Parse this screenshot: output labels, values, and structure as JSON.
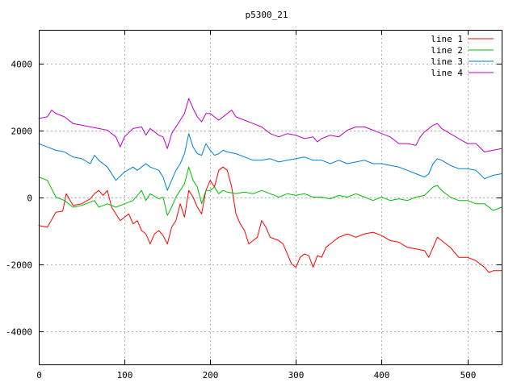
{
  "chart_data": {
    "type": "line",
    "title": "p5300_21",
    "xlabel": "",
    "ylabel": "",
    "xlim": [
      0,
      540
    ],
    "ylim": [
      -5000,
      5000
    ],
    "xticks": [
      0,
      100,
      200,
      300,
      400,
      500
    ],
    "yticks": [
      -4000,
      -2000,
      0,
      2000,
      4000
    ],
    "grid": true,
    "legend_position": "top-right",
    "series": [
      {
        "name": "line 1",
        "color": "#ff0000",
        "points": [
          [
            0,
            -850
          ],
          [
            10,
            -900
          ],
          [
            20,
            -450
          ],
          [
            28,
            -420
          ],
          [
            32,
            100
          ],
          [
            40,
            -250
          ],
          [
            50,
            -200
          ],
          [
            60,
            -50
          ],
          [
            65,
            100
          ],
          [
            70,
            200
          ],
          [
            75,
            50
          ],
          [
            80,
            200
          ],
          [
            85,
            -300
          ],
          [
            95,
            -700
          ],
          [
            105,
            -500
          ],
          [
            110,
            -800
          ],
          [
            115,
            -700
          ],
          [
            120,
            -1000
          ],
          [
            125,
            -1100
          ],
          [
            130,
            -1400
          ],
          [
            135,
            -1100
          ],
          [
            140,
            -1000
          ],
          [
            145,
            -1150
          ],
          [
            150,
            -1400
          ],
          [
            155,
            -900
          ],
          [
            160,
            -700
          ],
          [
            165,
            -200
          ],
          [
            170,
            -600
          ],
          [
            175,
            200
          ],
          [
            180,
            0
          ],
          [
            185,
            -300
          ],
          [
            190,
            -500
          ],
          [
            195,
            200
          ],
          [
            200,
            500
          ],
          [
            205,
            300
          ],
          [
            210,
            800
          ],
          [
            215,
            900
          ],
          [
            220,
            800
          ],
          [
            225,
            300
          ],
          [
            230,
            -500
          ],
          [
            235,
            -800
          ],
          [
            240,
            -1000
          ],
          [
            245,
            -1400
          ],
          [
            250,
            -1300
          ],
          [
            255,
            -1200
          ],
          [
            260,
            -700
          ],
          [
            265,
            -900
          ],
          [
            270,
            -1200
          ],
          [
            275,
            -1250
          ],
          [
            280,
            -1300
          ],
          [
            285,
            -1400
          ],
          [
            290,
            -1700
          ],
          [
            295,
            -2000
          ],
          [
            300,
            -2100
          ],
          [
            305,
            -1800
          ],
          [
            310,
            -1700
          ],
          [
            315,
            -1750
          ],
          [
            320,
            -2100
          ],
          [
            325,
            -1750
          ],
          [
            330,
            -1800
          ],
          [
            335,
            -1500
          ],
          [
            340,
            -1400
          ],
          [
            345,
            -1300
          ],
          [
            350,
            -1200
          ],
          [
            360,
            -1100
          ],
          [
            370,
            -1200
          ],
          [
            380,
            -1100
          ],
          [
            390,
            -1050
          ],
          [
            400,
            -1150
          ],
          [
            410,
            -1300
          ],
          [
            420,
            -1350
          ],
          [
            430,
            -1500
          ],
          [
            440,
            -1550
          ],
          [
            450,
            -1600
          ],
          [
            455,
            -1800
          ],
          [
            460,
            -1500
          ],
          [
            465,
            -1200
          ],
          [
            470,
            -1300
          ],
          [
            475,
            -1400
          ],
          [
            480,
            -1500
          ],
          [
            485,
            -1650
          ],
          [
            490,
            -1800
          ],
          [
            500,
            -1800
          ],
          [
            510,
            -1900
          ],
          [
            520,
            -2100
          ],
          [
            525,
            -2250
          ],
          [
            530,
            -2200
          ],
          [
            540,
            -2200
          ]
        ]
      },
      {
        "name": "line 2",
        "color": "#00c000",
        "points": [
          [
            0,
            600
          ],
          [
            10,
            500
          ],
          [
            20,
            0
          ],
          [
            30,
            -100
          ],
          [
            40,
            -300
          ],
          [
            50,
            -250
          ],
          [
            60,
            -150
          ],
          [
            65,
            -100
          ],
          [
            70,
            -300
          ],
          [
            80,
            -200
          ],
          [
            90,
            -300
          ],
          [
            100,
            -200
          ],
          [
            110,
            -100
          ],
          [
            120,
            200
          ],
          [
            125,
            -100
          ],
          [
            130,
            100
          ],
          [
            140,
            -50
          ],
          [
            145,
            0
          ],
          [
            150,
            -550
          ],
          [
            155,
            -300
          ],
          [
            160,
            0
          ],
          [
            165,
            200
          ],
          [
            170,
            400
          ],
          [
            175,
            900
          ],
          [
            180,
            500
          ],
          [
            185,
            300
          ],
          [
            190,
            -200
          ],
          [
            195,
            200
          ],
          [
            200,
            200
          ],
          [
            205,
            300
          ],
          [
            210,
            100
          ],
          [
            215,
            200
          ],
          [
            220,
            150
          ],
          [
            230,
            100
          ],
          [
            240,
            150
          ],
          [
            250,
            100
          ],
          [
            260,
            200
          ],
          [
            270,
            100
          ],
          [
            280,
            0
          ],
          [
            290,
            100
          ],
          [
            300,
            50
          ],
          [
            310,
            100
          ],
          [
            320,
            0
          ],
          [
            330,
            0
          ],
          [
            340,
            -50
          ],
          [
            350,
            50
          ],
          [
            360,
            0
          ],
          [
            370,
            100
          ],
          [
            380,
            0
          ],
          [
            390,
            -100
          ],
          [
            400,
            0
          ],
          [
            410,
            -100
          ],
          [
            420,
            -50
          ],
          [
            430,
            -100
          ],
          [
            440,
            0
          ],
          [
            450,
            50
          ],
          [
            460,
            300
          ],
          [
            465,
            350
          ],
          [
            470,
            200
          ],
          [
            480,
            0
          ],
          [
            490,
            -100
          ],
          [
            500,
            -100
          ],
          [
            510,
            -200
          ],
          [
            520,
            -200
          ],
          [
            530,
            -400
          ],
          [
            540,
            -300
          ]
        ]
      },
      {
        "name": "line 3",
        "color": "#0080d0",
        "points": [
          [
            0,
            1600
          ],
          [
            10,
            1500
          ],
          [
            20,
            1400
          ],
          [
            30,
            1350
          ],
          [
            40,
            1200
          ],
          [
            50,
            1150
          ],
          [
            60,
            1000
          ],
          [
            65,
            1250
          ],
          [
            70,
            1100
          ],
          [
            80,
            900
          ],
          [
            90,
            500
          ],
          [
            100,
            750
          ],
          [
            110,
            900
          ],
          [
            115,
            800
          ],
          [
            120,
            900
          ],
          [
            125,
            1000
          ],
          [
            130,
            900
          ],
          [
            140,
            800
          ],
          [
            145,
            600
          ],
          [
            150,
            200
          ],
          [
            155,
            500
          ],
          [
            160,
            800
          ],
          [
            165,
            1000
          ],
          [
            170,
            1300
          ],
          [
            175,
            1900
          ],
          [
            180,
            1500
          ],
          [
            185,
            1300
          ],
          [
            190,
            1250
          ],
          [
            195,
            1600
          ],
          [
            200,
            1400
          ],
          [
            205,
            1250
          ],
          [
            210,
            1300
          ],
          [
            215,
            1400
          ],
          [
            220,
            1350
          ],
          [
            230,
            1300
          ],
          [
            240,
            1200
          ],
          [
            250,
            1100
          ],
          [
            260,
            1100
          ],
          [
            270,
            1150
          ],
          [
            280,
            1050
          ],
          [
            290,
            1100
          ],
          [
            300,
            1150
          ],
          [
            310,
            1200
          ],
          [
            320,
            1100
          ],
          [
            330,
            1100
          ],
          [
            340,
            1000
          ],
          [
            350,
            1100
          ],
          [
            360,
            1000
          ],
          [
            370,
            1050
          ],
          [
            380,
            1100
          ],
          [
            390,
            1000
          ],
          [
            400,
            1000
          ],
          [
            410,
            950
          ],
          [
            420,
            900
          ],
          [
            430,
            800
          ],
          [
            440,
            700
          ],
          [
            450,
            600
          ],
          [
            455,
            700
          ],
          [
            460,
            1000
          ],
          [
            465,
            1150
          ],
          [
            470,
            1100
          ],
          [
            480,
            950
          ],
          [
            490,
            850
          ],
          [
            500,
            850
          ],
          [
            510,
            800
          ],
          [
            520,
            550
          ],
          [
            530,
            650
          ],
          [
            540,
            700
          ]
        ]
      },
      {
        "name": "line 4",
        "color": "#c000c0",
        "points": [
          [
            0,
            2350
          ],
          [
            10,
            2400
          ],
          [
            15,
            2600
          ],
          [
            20,
            2500
          ],
          [
            30,
            2400
          ],
          [
            40,
            2200
          ],
          [
            50,
            2150
          ],
          [
            60,
            2100
          ],
          [
            70,
            2050
          ],
          [
            80,
            2000
          ],
          [
            90,
            1800
          ],
          [
            95,
            1500
          ],
          [
            100,
            1800
          ],
          [
            110,
            2050
          ],
          [
            120,
            2100
          ],
          [
            125,
            1850
          ],
          [
            130,
            2050
          ],
          [
            140,
            1850
          ],
          [
            145,
            1800
          ],
          [
            150,
            1450
          ],
          [
            155,
            1900
          ],
          [
            160,
            2100
          ],
          [
            165,
            2300
          ],
          [
            170,
            2500
          ],
          [
            175,
            2950
          ],
          [
            180,
            2650
          ],
          [
            185,
            2400
          ],
          [
            190,
            2250
          ],
          [
            195,
            2500
          ],
          [
            200,
            2500
          ],
          [
            210,
            2300
          ],
          [
            220,
            2500
          ],
          [
            225,
            2600
          ],
          [
            230,
            2400
          ],
          [
            240,
            2300
          ],
          [
            250,
            2200
          ],
          [
            260,
            2100
          ],
          [
            270,
            1900
          ],
          [
            280,
            1800
          ],
          [
            290,
            1900
          ],
          [
            300,
            1850
          ],
          [
            310,
            1750
          ],
          [
            320,
            1800
          ],
          [
            325,
            1650
          ],
          [
            330,
            1750
          ],
          [
            340,
            1850
          ],
          [
            350,
            1800
          ],
          [
            360,
            2000
          ],
          [
            370,
            2100
          ],
          [
            380,
            2100
          ],
          [
            390,
            2000
          ],
          [
            400,
            1900
          ],
          [
            410,
            1800
          ],
          [
            420,
            1600
          ],
          [
            430,
            1600
          ],
          [
            440,
            1550
          ],
          [
            445,
            1800
          ],
          [
            450,
            1950
          ],
          [
            460,
            2150
          ],
          [
            465,
            2200
          ],
          [
            470,
            2050
          ],
          [
            480,
            1900
          ],
          [
            490,
            1750
          ],
          [
            500,
            1600
          ],
          [
            510,
            1600
          ],
          [
            520,
            1350
          ],
          [
            530,
            1400
          ],
          [
            540,
            1450
          ]
        ]
      }
    ]
  }
}
